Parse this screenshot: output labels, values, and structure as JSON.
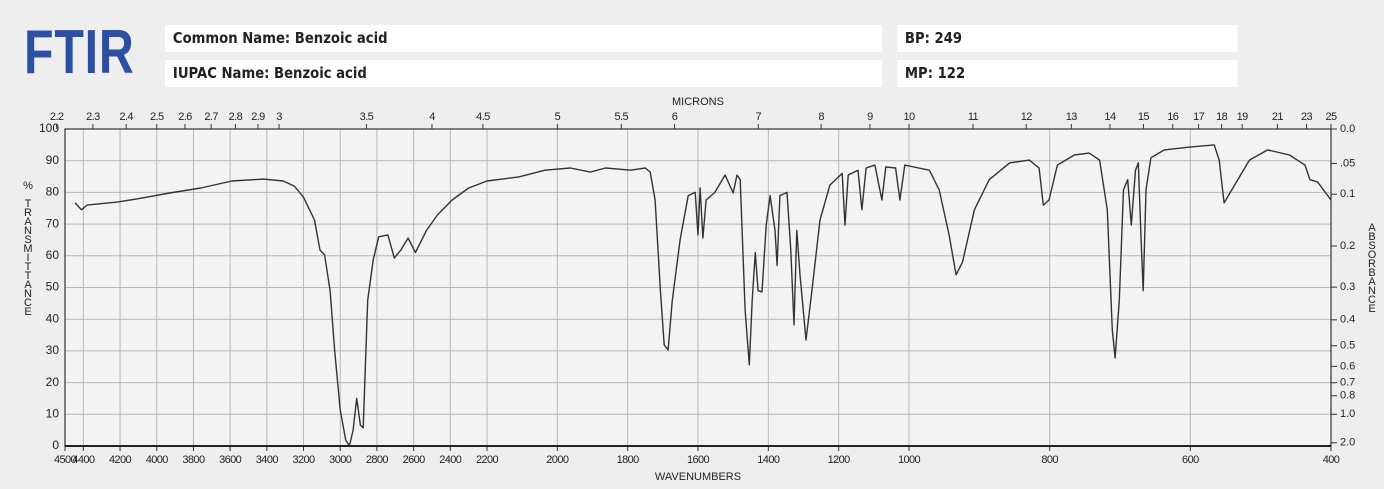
{
  "header": {
    "logo": "FTIR",
    "common_name": "Common Name: Benzoic acid",
    "iupac_name": "IUPAC Name: Benzoic acid",
    "bp": {
      "label": "BP:",
      "value": 249
    },
    "mp": {
      "label": "MP:",
      "value": 122
    }
  },
  "chart_data": {
    "type": "line",
    "color": "#333333",
    "grid": true,
    "xlabel": "WAVENUMBERS",
    "ylabel": "% TRANSMITTANCE",
    "x2label": "MICRONS",
    "y2label": "ABSORBANCE",
    "xlim": [
      4500,
      400
    ],
    "xbreaks": [
      2200,
      1000
    ],
    "xticks": [
      4500,
      4400,
      4200,
      4000,
      3800,
      3600,
      3400,
      3200,
      3000,
      2800,
      2600,
      2400,
      2200,
      2000,
      1800,
      1600,
      1400,
      1200,
      1000,
      800,
      600,
      400
    ],
    "ylim": [
      0,
      100
    ],
    "yticks": [
      0,
      10,
      20,
      30,
      40,
      50,
      60,
      70,
      80,
      90,
      100
    ],
    "x2ticks": [
      2.2,
      2.3,
      2.4,
      2.5,
      2.6,
      2.7,
      2.8,
      2.9,
      3,
      3.5,
      4,
      4.5,
      5,
      5.5,
      6,
      7,
      8,
      9,
      10,
      11,
      12,
      13,
      14,
      15,
      16,
      17,
      18,
      19,
      21,
      23,
      25
    ],
    "y2scale": "absorbance",
    "y2ticks": [
      {
        "value": 0,
        "label": "0.0"
      },
      {
        "value": 0.05,
        "label": ".05"
      },
      0.1,
      0.2,
      0.3,
      0.4,
      0.5,
      0.6,
      0.7,
      0.8,
      {
        "value": 1,
        "label": "1.0"
      },
      {
        "value": 2,
        "label": "2.0"
      }
    ],
    "x": [
      4445,
      4410,
      4380,
      4210,
      4100,
      3930,
      3760,
      3590,
      3420,
      3310,
      3250,
      3200,
      3140,
      3110,
      3085,
      3055,
      3030,
      3000,
      2970,
      2950,
      2930,
      2910,
      2890,
      2875,
      2850,
      2820,
      2790,
      2740,
      2705,
      2670,
      2630,
      2590,
      2530,
      2470,
      2390,
      2300,
      2200,
      2110,
      2035,
      1963,
      1906,
      1863,
      1792,
      1750,
      1736,
      1722,
      1707,
      1696,
      1685,
      1673,
      1651,
      1628,
      1608,
      1600,
      1594,
      1586,
      1577,
      1552,
      1523,
      1500,
      1489,
      1480,
      1466,
      1454,
      1446,
      1437,
      1429,
      1418,
      1406,
      1395,
      1381,
      1375,
      1367,
      1347,
      1336,
      1327,
      1319,
      1310,
      1293,
      1276,
      1253,
      1225,
      1190,
      1182,
      1173,
      1145,
      1134,
      1122,
      1097,
      1077,
      1066,
      1038,
      1026,
      1012,
      993,
      971,
      957,
      943,
      933,
      924,
      907,
      886,
      857,
      829,
      815,
      809,
      801,
      789,
      765,
      744,
      729,
      718,
      711,
      707,
      701,
      695,
      689,
      684,
      678,
      674,
      670,
      667,
      663,
      656,
      637,
      601,
      566,
      559,
      552,
      537,
      516,
      490,
      459,
      437,
      430,
      419,
      400
    ],
    "values": [
      76.7,
      74.5,
      76,
      77,
      78,
      79.8,
      81.4,
      83.6,
      84.2,
      83.6,
      82,
      78.5,
      71.3,
      61.8,
      60.3,
      49,
      30,
      11.4,
      1.9,
      0,
      5,
      15,
      6.6,
      5.7,
      46,
      58.7,
      66,
      66.6,
      59.3,
      61.8,
      65.6,
      61,
      68,
      72.9,
      77.6,
      81.4,
      83.6,
      84.9,
      87,
      87.7,
      86.4,
      87.7,
      87,
      87.7,
      86.4,
      77.6,
      49,
      31.9,
      30.3,
      46,
      65,
      79,
      80,
      66.6,
      81.4,
      65.6,
      77.6,
      80,
      85.5,
      79.8,
      85.5,
      84,
      43,
      25.6,
      46,
      61,
      49,
      48.6,
      69.7,
      79,
      68,
      57,
      79,
      80,
      61.8,
      38.2,
      68,
      54,
      33.4,
      49,
      71.3,
      82.3,
      86,
      69.7,
      85.5,
      87,
      74.5,
      87.7,
      88.6,
      77.6,
      88,
      87.7,
      77.6,
      88.6,
      88,
      87,
      80.8,
      66.6,
      54,
      58,
      74.5,
      84,
      89.3,
      90.2,
      87.7,
      76,
      77.6,
      88.6,
      91.8,
      92.4,
      90.2,
      74.5,
      36.6,
      27.8,
      46,
      80.8,
      84,
      69.7,
      87,
      89.3,
      65,
      49,
      80.8,
      90.9,
      93.4,
      94.3,
      95,
      90.2,
      76.7,
      82.3,
      90.2,
      93.4,
      91.8,
      88.6,
      84,
      83.3,
      77.6
    ]
  }
}
